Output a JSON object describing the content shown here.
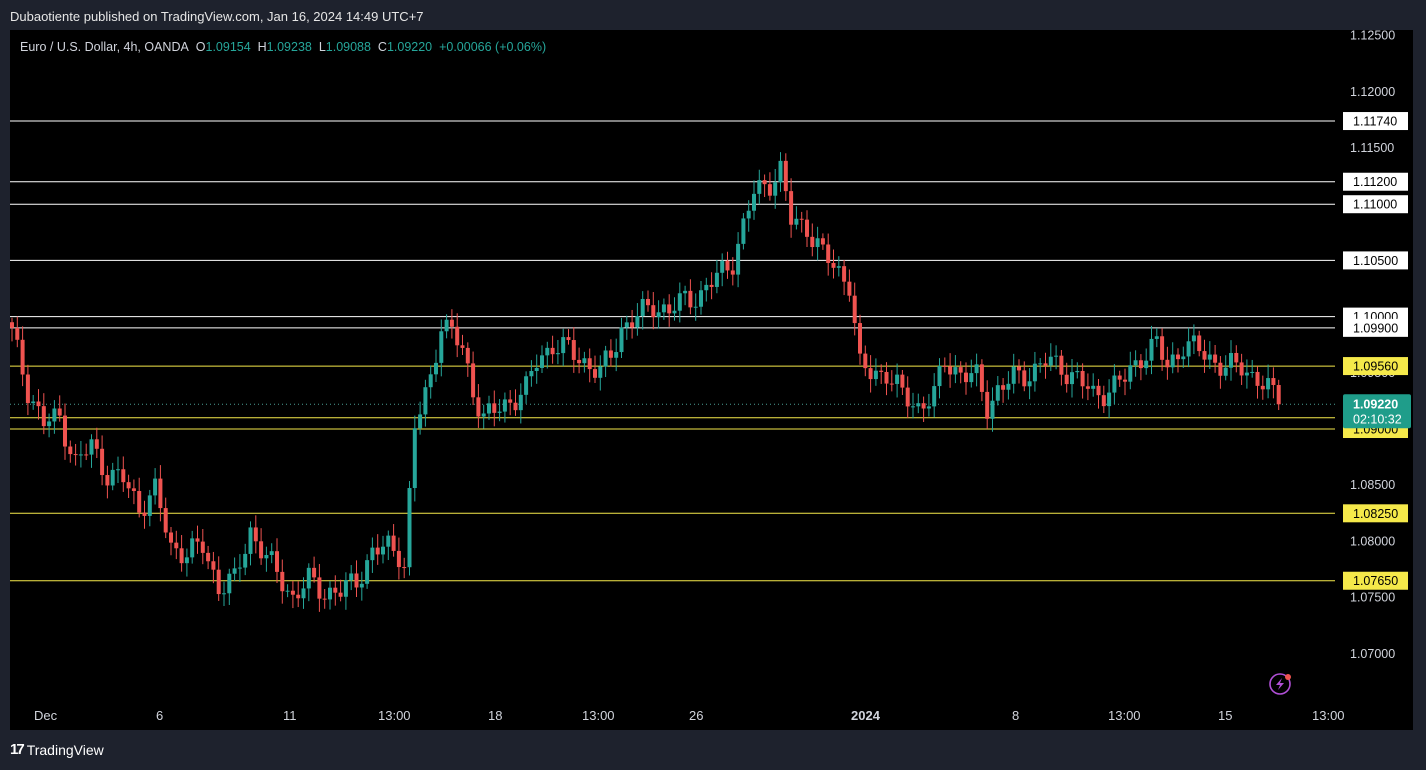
{
  "header": {
    "published": "Dubaotiente published on TradingView.com, Jan 16, 2024 14:49 UTC+7"
  },
  "symbol": {
    "name": "Euro / U.S. Dollar, 4h, OANDA",
    "o_label": "O",
    "o_value": "1.09154",
    "h_label": "H",
    "h_value": "1.09238",
    "l_label": "L",
    "l_value": "1.09088",
    "c_label": "C",
    "c_value": "1.09220",
    "change": "+0.00066 (+0.06%)"
  },
  "footer": {
    "brand": "TradingView",
    "logo": "17"
  },
  "colors": {
    "up": "#26a69a",
    "down": "#ef5350",
    "white_level": "#ffffff",
    "yellow_level": "#f5e94a",
    "price_tag": "#1f9d8a",
    "background": "#000000"
  },
  "icons": {
    "lightning": "lightning-icon"
  },
  "chart_data": {
    "type": "candlestick",
    "symbol": "EUR/USD",
    "interval": "4h",
    "current_price": "1.09220",
    "countdown": "02:10:32",
    "ylim": [
      1.065,
      1.1255
    ],
    "y_ticks": [
      "1.12500",
      "1.12000",
      "1.11500",
      "1.11000",
      "1.10500",
      "1.10000",
      "1.09500",
      "1.09000",
      "1.08500",
      "1.08000",
      "1.07500",
      "1.07000"
    ],
    "x_ticks": [
      "Dec",
      "6",
      "11",
      "13:00",
      "18",
      "13:00",
      "26",
      "2024",
      "8",
      "13:00",
      "15",
      "13:00"
    ],
    "horizontal_levels": [
      {
        "price": 1.1174,
        "label": "1.11740",
        "color": "white"
      },
      {
        "price": 1.112,
        "label": "1.11200",
        "color": "white"
      },
      {
        "price": 1.11,
        "label": "1.11000",
        "color": "white"
      },
      {
        "price": 1.105,
        "label": "1.10500",
        "color": "white"
      },
      {
        "price": 1.1,
        "label": "1.10000",
        "color": "white"
      },
      {
        "price": 1.099,
        "label": "1.09900",
        "color": "white"
      },
      {
        "price": 1.0956,
        "label": "1.09560",
        "color": "yellow"
      },
      {
        "price": 1.091,
        "label": "1.09100",
        "color": "yellow"
      },
      {
        "price": 1.09,
        "label": "1.09000",
        "color": "yellow"
      },
      {
        "price": 1.0825,
        "label": "1.08250",
        "color": "yellow"
      },
      {
        "price": 1.0765,
        "label": "1.07650",
        "color": "yellow"
      }
    ],
    "close_path": [
      [
        0,
        1.0985
      ],
      [
        3,
        1.0935
      ],
      [
        6,
        1.0905
      ],
      [
        9,
        1.091
      ],
      [
        12,
        1.087
      ],
      [
        15,
        1.0885
      ],
      [
        18,
        1.086
      ],
      [
        21,
        1.0855
      ],
      [
        24,
        1.083
      ],
      [
        27,
        1.0845
      ],
      [
        30,
        1.0795
      ],
      [
        33,
        1.079
      ],
      [
        36,
        1.0795
      ],
      [
        39,
        1.076
      ],
      [
        42,
        1.0765
      ],
      [
        45,
        1.081
      ],
      [
        48,
        1.0785
      ],
      [
        51,
        1.0765
      ],
      [
        53,
        1.075
      ],
      [
        56,
        1.0765
      ],
      [
        59,
        1.0755
      ],
      [
        62,
        1.0755
      ],
      [
        65,
        1.0765
      ],
      [
        68,
        1.079
      ],
      [
        71,
        1.0795
      ],
      [
        73,
        1.079
      ],
      [
        74,
        1.078
      ],
      [
        76,
        1.09
      ],
      [
        79,
        1.0945
      ],
      [
        81,
        1.0995
      ],
      [
        83,
        1.0985
      ],
      [
        85,
        1.097
      ],
      [
        87,
        1.0935
      ],
      [
        89,
        1.091
      ],
      [
        91,
        1.0915
      ],
      [
        94,
        1.0925
      ],
      [
        97,
        1.0935
      ],
      [
        99,
        1.096
      ],
      [
        102,
        1.0975
      ],
      [
        105,
        1.097
      ],
      [
        108,
        1.096
      ],
      [
        111,
        1.095
      ],
      [
        113,
        1.0965
      ],
      [
        115,
        1.099
      ],
      [
        118,
        1.1
      ],
      [
        121,
        1.101
      ],
      [
        124,
        1.1005
      ],
      [
        127,
        1.1015
      ],
      [
        130,
        1.102
      ],
      [
        133,
        1.1035
      ],
      [
        136,
        1.105
      ],
      [
        138,
        1.108
      ],
      [
        140,
        1.111
      ],
      [
        143,
        1.112
      ],
      [
        145,
        1.113
      ],
      [
        147,
        1.1085
      ],
      [
        150,
        1.108
      ],
      [
        153,
        1.1055
      ],
      [
        155,
        1.1045
      ],
      [
        158,
        1.103
      ],
      [
        160,
        1.0955
      ],
      [
        162,
        1.095
      ],
      [
        165,
        1.095
      ],
      [
        168,
        1.093
      ],
      [
        171,
        1.092
      ],
      [
        174,
        1.093
      ],
      [
        176,
        1.096
      ],
      [
        179,
        1.095
      ],
      [
        182,
        1.0945
      ],
      [
        184,
        1.092
      ],
      [
        186,
        1.0935
      ],
      [
        189,
        1.0945
      ],
      [
        192,
        1.095
      ],
      [
        195,
        1.096
      ],
      [
        198,
        1.0955
      ],
      [
        201,
        1.0945
      ],
      [
        204,
        1.093
      ],
      [
        207,
        1.0935
      ],
      [
        210,
        1.0945
      ],
      [
        213,
        1.0965
      ],
      [
        216,
        1.0975
      ],
      [
        218,
        1.0955
      ],
      [
        221,
        1.0975
      ],
      [
        224,
        1.097
      ],
      [
        227,
        1.096
      ],
      [
        229,
        1.0955
      ],
      [
        232,
        1.0955
      ],
      [
        235,
        1.0945
      ],
      [
        238,
        1.093
      ],
      [
        239,
        1.0922
      ]
    ]
  }
}
